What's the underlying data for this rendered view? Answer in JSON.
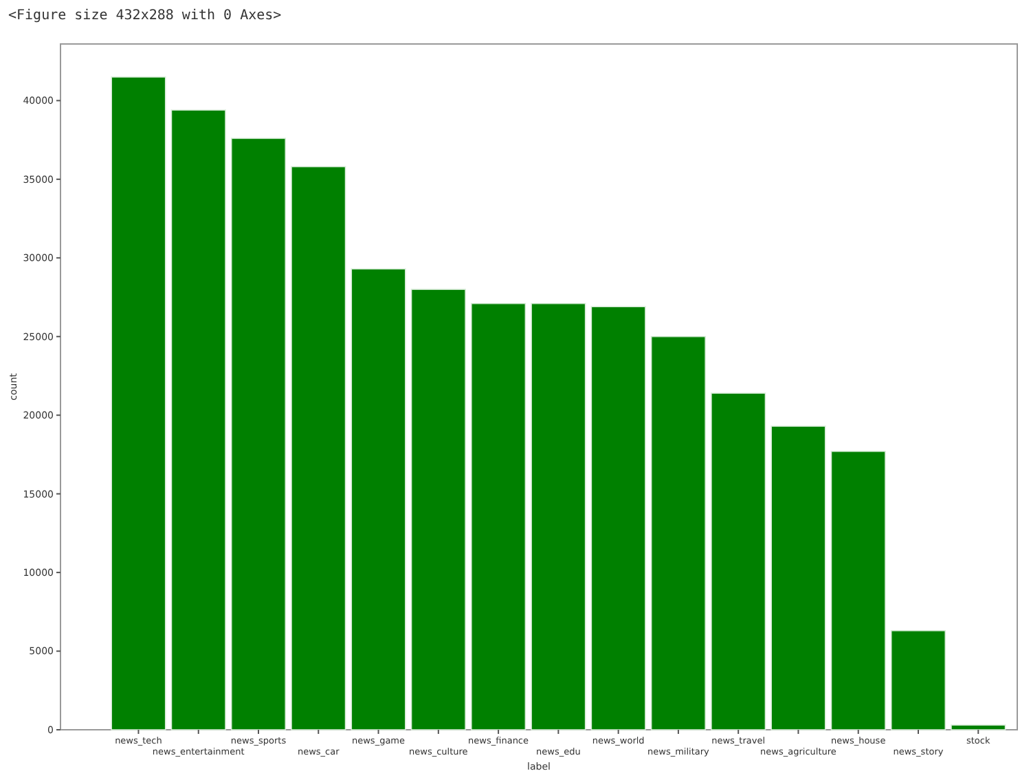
{
  "chart_data": {
    "type": "bar",
    "xlabel": "label",
    "ylabel": "count",
    "categories": [
      "news_tech",
      "news_entertainment",
      "news_sports",
      "news_car",
      "news_game",
      "news_culture",
      "news_finance",
      "news_edu",
      "news_world",
      "news_military",
      "news_travel",
      "news_agriculture",
      "news_house",
      "news_story",
      "stock"
    ],
    "values": [
      41500,
      39400,
      37600,
      35800,
      29300,
      28000,
      27100,
      27100,
      26900,
      25000,
      21400,
      19300,
      17700,
      6300,
      300
    ],
    "color": "#008000",
    "ylim": [
      0,
      43600
    ],
    "yticks": [
      0,
      5000,
      10000,
      15000,
      20000,
      25000,
      30000,
      35000,
      40000
    ],
    "grid": false,
    "annotations": [
      "<Figure size 432x288 with 0 Axes>"
    ]
  }
}
